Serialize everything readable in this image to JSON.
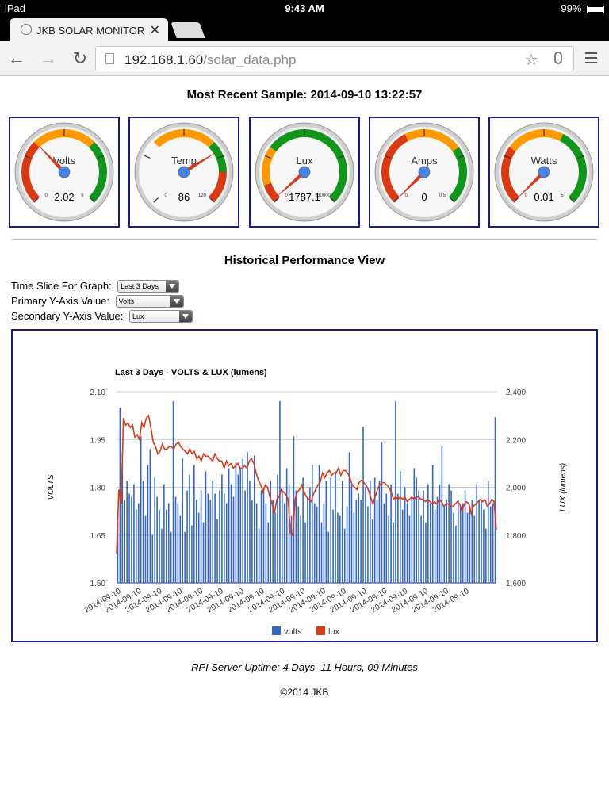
{
  "status_bar": {
    "device": "iPad",
    "time": "9:43 AM",
    "battery": "99%"
  },
  "browser": {
    "tab_title": "JKB SOLAR MONITOR",
    "url_host": "192.168.1.60",
    "url_path": "/solar_data.php"
  },
  "sample": {
    "label": "Most Recent Sample:",
    "timestamp": "2014-09-10 13:22:57"
  },
  "gauges": [
    {
      "label": "Volts",
      "value": 2.02,
      "display": "2.02",
      "min": 0,
      "max": 6,
      "min_label": "0",
      "max_label": "6",
      "bands": [
        {
          "from": 0,
          "to": 2,
          "color": "#dc3912"
        },
        {
          "from": 2,
          "to": 4,
          "color": "#ff9900"
        },
        {
          "from": 4,
          "to": 6,
          "color": "#109618"
        }
      ]
    },
    {
      "label": "Temp",
      "value": 86,
      "display": "86",
      "min": 0,
      "max": 120,
      "min_label": "0",
      "max_label": "120",
      "bands": [
        {
          "from": 40,
          "to": 80,
          "color": "#ff9900"
        },
        {
          "from": 80,
          "to": 100,
          "color": "#109618"
        },
        {
          "from": 100,
          "to": 120,
          "color": "#dc3912"
        }
      ]
    },
    {
      "label": "Lux",
      "value": 1787.1,
      "display": "1787.1",
      "min": 0,
      "max": 130000,
      "min_label": "0",
      "max_label": "130000",
      "bands": [
        {
          "from": 0,
          "to": 13000,
          "color": "#dc3912"
        },
        {
          "from": 13000,
          "to": 39000,
          "color": "#ff9900"
        },
        {
          "from": 39000,
          "to": 130000,
          "color": "#109618"
        }
      ]
    },
    {
      "label": "Amps",
      "value": 0,
      "display": "0",
      "min": 0,
      "max": 0.5,
      "min_label": "0",
      "max_label": "0.5",
      "bands": [
        {
          "from": 0,
          "to": 0.2,
          "color": "#dc3912"
        },
        {
          "from": 0.2,
          "to": 0.35,
          "color": "#ff9900"
        },
        {
          "from": 0.35,
          "to": 0.5,
          "color": "#109618"
        }
      ]
    },
    {
      "label": "Watts",
      "value": 0.01,
      "display": "0.01",
      "min": 0,
      "max": 5,
      "min_label": "0",
      "max_label": "5",
      "bands": [
        {
          "from": 0,
          "to": 1.5,
          "color": "#dc3912"
        },
        {
          "from": 1.5,
          "to": 3,
          "color": "#ff9900"
        },
        {
          "from": 3,
          "to": 5,
          "color": "#109618"
        }
      ]
    }
  ],
  "historical": {
    "heading": "Historical Performance View",
    "time_slice_label": "Time Slice For Graph:",
    "time_slice_value": "Last 3 Days",
    "primary_label": "Primary Y-Axis Value:",
    "primary_value": "Volts",
    "secondary_label": "Secondary Y-Axis Value:",
    "secondary_value": "Lux"
  },
  "chart_data": {
    "type": "bar",
    "title": "Last 3 Days - VOLTS & LUX (lumens)",
    "ylabel": "VOLTS",
    "y2label": "LUX (lumens)",
    "ylim": [
      1.5,
      2.1
    ],
    "y2lim": [
      1600,
      2400
    ],
    "yticks": [
      "1.50",
      "1.65",
      "1.80",
      "1.95",
      "2.10"
    ],
    "y2ticks": [
      "1,600",
      "1,800",
      "2,000",
      "2,200",
      "2,400"
    ],
    "x_tick_label": "2014-09-10",
    "x_tick_count": 18,
    "legend_position": "bottom",
    "series": [
      {
        "name": "volts",
        "color": "#3366cc",
        "type": "bar",
        "values": [
          1.69,
          2.05,
          1.91,
          1.76,
          1.82,
          1.78,
          1.77,
          1.81,
          1.73,
          1.75,
          1.96,
          1.82,
          1.71,
          1.87,
          1.92,
          1.65,
          1.83,
          1.77,
          1.73,
          1.67,
          1.81,
          1.73,
          1.75,
          1.66,
          2.07,
          1.77,
          1.75,
          1.71,
          1.89,
          1.66,
          1.79,
          1.84,
          1.68,
          1.87,
          1.76,
          1.72,
          1.79,
          1.69,
          1.85,
          1.78,
          1.76,
          1.82,
          1.78,
          1.7,
          1.79,
          1.84,
          1.78,
          1.75,
          1.86,
          1.81,
          1.77,
          1.88,
          1.84,
          1.86,
          1.89,
          1.79,
          1.91,
          1.82,
          1.76,
          1.9,
          1.75,
          1.67,
          1.79,
          1.8,
          1.75,
          1.69,
          1.82,
          1.76,
          1.72,
          1.84,
          2.07,
          1.79,
          1.75,
          1.86,
          1.81,
          1.71,
          1.96,
          1.79,
          1.74,
          1.71,
          1.83,
          1.69,
          1.77,
          1.8,
          1.87,
          1.75,
          1.74,
          1.87,
          1.69,
          1.75,
          1.82,
          1.66,
          1.83,
          1.73,
          1.85,
          1.72,
          1.71,
          1.82,
          1.67,
          1.74,
          1.91,
          1.81,
          1.72,
          1.76,
          1.78,
          1.76,
          1.99,
          1.8,
          1.74,
          1.82,
          1.7,
          1.83,
          1.76,
          1.82,
          1.94,
          1.75,
          1.78,
          1.71,
          1.81,
          1.69,
          2.07,
          1.78,
          1.85,
          1.73,
          1.8,
          1.75,
          1.71,
          1.77,
          1.86,
          1.83,
          1.79,
          1.71,
          1.79,
          1.69,
          1.81,
          1.75,
          1.87,
          1.73,
          1.77,
          1.81,
          1.93,
          1.74,
          1.76,
          1.81,
          1.79,
          1.72,
          1.68,
          1.76,
          1.74,
          1.75,
          1.79,
          1.72,
          1.74,
          1.76,
          1.71,
          1.81,
          1.76,
          1.76,
          1.73,
          1.67,
          1.82,
          1.74,
          1.75,
          2.02
        ]
      },
      {
        "name": "lux",
        "color": "#dc3912",
        "type": "line",
        "values": [
          1720,
          1990,
          1930,
          2290,
          2260,
          2270,
          2250,
          2260,
          2210,
          2220,
          2200,
          2270,
          2250,
          2290,
          2300,
          2250,
          2190,
          2170,
          2140,
          2150,
          2180,
          2160,
          2160,
          2170,
          2170,
          2160,
          2180,
          2190,
          2170,
          2160,
          2150,
          2140,
          2160,
          2140,
          2150,
          2120,
          2130,
          2110,
          2140,
          2130,
          2130,
          2120,
          2110,
          2140,
          2120,
          2110,
          2110,
          2080,
          2110,
          2090,
          2100,
          2080,
          2090,
          2100,
          2080,
          2080,
          2090,
          2080,
          2110,
          2120,
          2100,
          2060,
          2030,
          2010,
          1980,
          2010,
          2000,
          1960,
          1930,
          1890,
          1950,
          1960,
          1990,
          1980,
          1970,
          1950,
          1810,
          1800,
          1950,
          1980,
          1990,
          2010,
          1980,
          1960,
          1950,
          1940,
          1970,
          1990,
          2010,
          2020,
          2060,
          2040,
          2060,
          2070,
          2050,
          2060,
          2060,
          2080,
          2050,
          2070,
          2070,
          2060,
          2040,
          2010,
          2000,
          1990,
          2020,
          2030,
          2020,
          2010,
          1990,
          1960,
          1930,
          1960,
          1990,
          2010,
          2020,
          2020,
          2010,
          2000,
          1980,
          1950,
          1960,
          1950,
          1960,
          1950,
          1960,
          1940,
          1950,
          1960,
          1950,
          1960,
          1960,
          1950,
          1950,
          1940,
          1950,
          1940,
          1930,
          1940,
          1930,
          1950,
          1940,
          1920,
          1930,
          1930,
          1920,
          1920,
          1930,
          1940,
          1930,
          1900,
          1930,
          1940,
          1930,
          1890,
          1920,
          1930,
          1940,
          1950,
          1940,
          1950,
          1920,
          1930,
          1950,
          1940,
          1820
        ]
      }
    ]
  },
  "footer": {
    "uptime": "RPI Server Uptime: 4 Days, 11 Hours, 09 Minutes",
    "copyright": "©2014 JKB"
  }
}
